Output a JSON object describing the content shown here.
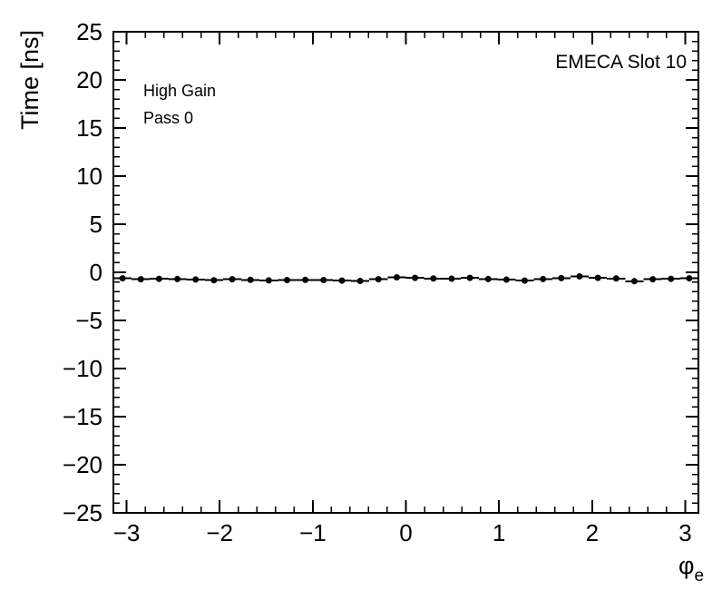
{
  "chart_data": {
    "type": "scatter",
    "title": "",
    "xlabel_symbol": "φ",
    "xlabel_sub": "e",
    "ylabel": "Time [ns]",
    "xlim": [
      -3.1416,
      3.1416
    ],
    "ylim": [
      -25,
      25
    ],
    "x_ticks": [
      -3,
      -2,
      -1,
      0,
      1,
      2,
      3
    ],
    "y_ticks": [
      -25,
      -20,
      -15,
      -10,
      -5,
      0,
      5,
      10,
      15,
      20,
      25
    ],
    "x_minor_step": 0.2,
    "y_minor_step": 1,
    "grid": false,
    "legend_position": "none",
    "annotations": {
      "slot": "EMECA Slot 10",
      "gain": "High Gain",
      "pass": "Pass 0"
    },
    "series": [
      {
        "name": "mean-time-vs-phi",
        "marker": "filled-circle",
        "color": "#000000",
        "x": [
          -3.043,
          -2.847,
          -2.651,
          -2.454,
          -2.258,
          -2.062,
          -1.865,
          -1.669,
          -1.473,
          -1.276,
          -1.08,
          -0.884,
          -0.687,
          -0.491,
          -0.295,
          -0.098,
          0.098,
          0.295,
          0.491,
          0.687,
          0.884,
          1.08,
          1.276,
          1.473,
          1.669,
          1.865,
          2.062,
          2.258,
          2.454,
          2.651,
          2.847,
          3.043
        ],
        "y": [
          -0.62,
          -0.72,
          -0.68,
          -0.7,
          -0.74,
          -0.82,
          -0.72,
          -0.78,
          -0.84,
          -0.8,
          -0.78,
          -0.8,
          -0.86,
          -0.9,
          -0.72,
          -0.52,
          -0.58,
          -0.64,
          -0.66,
          -0.58,
          -0.7,
          -0.76,
          -0.86,
          -0.7,
          -0.6,
          -0.42,
          -0.58,
          -0.64,
          -0.92,
          -0.72,
          -0.68,
          -0.62
        ],
        "xerr": 0.098,
        "yerr": 0.15
      }
    ]
  }
}
